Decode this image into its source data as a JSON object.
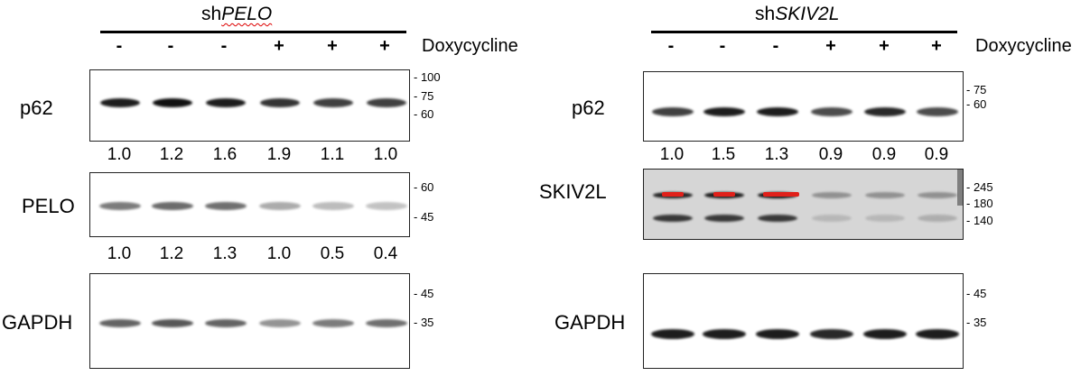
{
  "left": {
    "title_prefix": "sh",
    "title_gene": "PELO",
    "signs": [
      "-",
      "-",
      "-",
      "+",
      "+",
      "+"
    ],
    "dox_label": "Doxycycline",
    "blots": [
      {
        "label": "p62",
        "markers": [
          "- 100",
          "- 75",
          "- 60"
        ],
        "quant": [
          "1.0",
          "1.2",
          "1.6",
          "1.9",
          "1.1",
          "1.0"
        ],
        "bands": [
          0.95,
          1.0,
          0.95,
          0.85,
          0.8,
          0.8
        ]
      },
      {
        "label": "PELO",
        "markers": [
          "- 60",
          "- 45"
        ],
        "quant": [
          "1.0",
          "1.2",
          "1.3",
          "1.0",
          "0.5",
          "0.4"
        ],
        "bands": [
          0.55,
          0.62,
          0.6,
          0.35,
          0.28,
          0.25
        ]
      },
      {
        "label": "GAPDH",
        "markers": [
          "- 45",
          "- 35"
        ],
        "quant": [],
        "bands": [
          0.65,
          0.7,
          0.65,
          0.45,
          0.55,
          0.6
        ]
      }
    ]
  },
  "right": {
    "title_prefix": "sh",
    "title_gene": "SKIV2L",
    "signs": [
      "-",
      "-",
      "-",
      "+",
      "+",
      "+"
    ],
    "dox_label": "Doxycycline",
    "blots": [
      {
        "label": "p62",
        "markers": [
          "- 75",
          "- 60"
        ],
        "quant": [
          "1.0",
          "1.5",
          "1.3",
          "0.9",
          "0.9",
          "0.9"
        ],
        "bands": [
          0.8,
          0.95,
          0.95,
          0.75,
          0.9,
          0.75
        ]
      },
      {
        "label": "SKIV2L",
        "markers": [
          "- 245",
          "- 180",
          "- 140"
        ],
        "quant": [],
        "bands_top": [
          0.9,
          0.95,
          1.0,
          0.35,
          0.35,
          0.35
        ],
        "bands_bottom": [
          0.8,
          0.8,
          0.8,
          0.15,
          0.15,
          0.2
        ]
      },
      {
        "label": "GAPDH",
        "markers": [
          "- 45",
          "- 35"
        ],
        "quant": [],
        "bands": [
          0.95,
          0.95,
          0.95,
          0.9,
          0.95,
          0.95
        ]
      }
    ]
  },
  "colors": {
    "band": "#111111",
    "saturated": "#e0201a",
    "skiv2l_bg": "#d6d6d6"
  }
}
